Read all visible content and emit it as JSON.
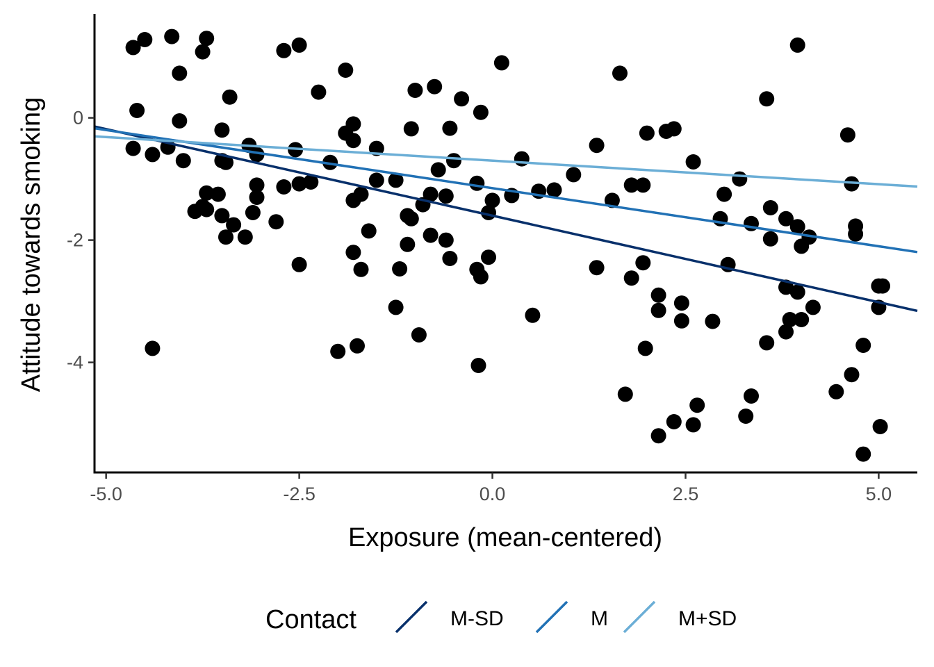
{
  "chart_data": {
    "type": "scatter",
    "title": "",
    "xlabel": "Exposure (mean-centered)",
    "ylabel": "Attitude towards smoking",
    "xlim": [
      -5.15,
      5.5
    ],
    "ylim": [
      -5.8,
      1.7
    ],
    "x_ticks": [
      -5.0,
      -2.5,
      0.0,
      2.5,
      5.0
    ],
    "x_tick_labels": [
      "-5.0",
      "-2.5",
      "0.0",
      "2.5",
      "5.0"
    ],
    "y_ticks": [
      -4,
      -2,
      0
    ],
    "y_tick_labels": [
      "-4",
      "-2",
      "0"
    ],
    "grid": false,
    "legend": {
      "title": "Contact",
      "position": "bottom"
    },
    "points": [
      [
        -4.65,
        1.15
      ],
      [
        -4.5,
        1.28
      ],
      [
        -4.15,
        1.33
      ],
      [
        -3.7,
        1.3
      ],
      [
        -3.75,
        1.08
      ],
      [
        -2.7,
        1.1
      ],
      [
        -2.5,
        1.19
      ],
      [
        -4.05,
        0.73
      ],
      [
        -1.9,
        0.78
      ],
      [
        0.12,
        0.9
      ],
      [
        3.95,
        1.19
      ],
      [
        1.65,
        0.73
      ],
      [
        -4.6,
        0.12
      ],
      [
        -4.05,
        -0.05
      ],
      [
        -3.4,
        0.34
      ],
      [
        -2.25,
        0.42
      ],
      [
        -1.0,
        0.45
      ],
      [
        -0.75,
        0.51
      ],
      [
        -0.4,
        0.31
      ],
      [
        -0.15,
        0.09
      ],
      [
        3.55,
        0.31
      ],
      [
        -4.65,
        -0.5
      ],
      [
        -4.4,
        -0.6
      ],
      [
        -4.2,
        -0.48
      ],
      [
        -4.0,
        -0.7
      ],
      [
        -3.5,
        -0.2
      ],
      [
        -3.5,
        -0.7
      ],
      [
        -3.45,
        -0.73
      ],
      [
        -3.15,
        -0.45
      ],
      [
        -3.05,
        -0.6
      ],
      [
        -2.55,
        -0.52
      ],
      [
        -2.1,
        -0.73
      ],
      [
        -1.9,
        -0.25
      ],
      [
        -1.8,
        -0.1
      ],
      [
        -1.8,
        -0.37
      ],
      [
        -1.5,
        -0.5
      ],
      [
        -1.05,
        -0.18
      ],
      [
        -0.55,
        -0.17
      ],
      [
        -0.5,
        -0.7
      ],
      [
        -0.7,
        -0.85
      ],
      [
        0.38,
        -0.67
      ],
      [
        1.35,
        -0.45
      ],
      [
        2.0,
        -0.25
      ],
      [
        2.25,
        -0.22
      ],
      [
        2.35,
        -0.18
      ],
      [
        2.6,
        -0.72
      ],
      [
        4.6,
        -0.28
      ],
      [
        -3.7,
        -1.23
      ],
      [
        -3.55,
        -1.25
      ],
      [
        -3.85,
        -1.53
      ],
      [
        -3.75,
        -1.45
      ],
      [
        -3.7,
        -1.5
      ],
      [
        -3.5,
        -1.6
      ],
      [
        -3.35,
        -1.75
      ],
      [
        -3.45,
        -1.95
      ],
      [
        -3.1,
        -1.55
      ],
      [
        -3.05,
        -1.1
      ],
      [
        -3.05,
        -1.3
      ],
      [
        -3.2,
        -1.95
      ],
      [
        -2.8,
        -1.7
      ],
      [
        -2.7,
        -1.13
      ],
      [
        -2.5,
        -1.08
      ],
      [
        -2.35,
        -1.05
      ],
      [
        -1.8,
        -1.35
      ],
      [
        -1.7,
        -1.25
      ],
      [
        -1.5,
        -1.02
      ],
      [
        -1.25,
        -1.02
      ],
      [
        -1.1,
        -1.6
      ],
      [
        -1.05,
        -1.65
      ],
      [
        -0.9,
        -1.42
      ],
      [
        -1.1,
        -2.07
      ],
      [
        -0.8,
        -1.25
      ],
      [
        -0.6,
        -1.28
      ],
      [
        -1.6,
        -1.85
      ],
      [
        -0.8,
        -1.92
      ],
      [
        -0.6,
        -2.0
      ],
      [
        -0.55,
        -2.3
      ],
      [
        -0.2,
        -1.07
      ],
      [
        -0.05,
        -1.55
      ],
      [
        0.0,
        -1.35
      ],
      [
        0.25,
        -1.27
      ],
      [
        0.6,
        -1.2
      ],
      [
        0.8,
        -1.18
      ],
      [
        1.05,
        -0.93
      ],
      [
        1.55,
        -1.35
      ],
      [
        1.8,
        -1.1
      ],
      [
        1.95,
        -1.1
      ],
      [
        3.0,
        -1.25
      ],
      [
        3.2,
        -1.0
      ],
      [
        2.95,
        -1.65
      ],
      [
        3.35,
        -1.73
      ],
      [
        3.6,
        -1.47
      ],
      [
        3.6,
        -1.98
      ],
      [
        3.8,
        -1.65
      ],
      [
        3.95,
        -1.78
      ],
      [
        4.0,
        -2.1
      ],
      [
        4.1,
        -1.95
      ],
      [
        4.65,
        -1.08
      ],
      [
        4.7,
        -1.77
      ],
      [
        4.7,
        -1.9
      ],
      [
        -1.8,
        -2.2
      ],
      [
        -1.7,
        -2.48
      ],
      [
        -2.5,
        -2.4
      ],
      [
        -1.2,
        -2.47
      ],
      [
        -0.2,
        -2.48
      ],
      [
        -0.05,
        -2.28
      ],
      [
        -0.15,
        -2.6
      ],
      [
        1.35,
        -2.45
      ],
      [
        1.8,
        -2.62
      ],
      [
        1.95,
        -2.37
      ],
      [
        3.05,
        -2.4
      ],
      [
        -1.25,
        -3.1
      ],
      [
        -0.95,
        -3.55
      ],
      [
        0.52,
        -3.23
      ],
      [
        2.15,
        -2.9
      ],
      [
        2.15,
        -3.15
      ],
      [
        2.45,
        -3.03
      ],
      [
        2.45,
        -3.32
      ],
      [
        2.85,
        -3.33
      ],
      [
        3.8,
        -2.77
      ],
      [
        3.85,
        -3.3
      ],
      [
        3.95,
        -2.85
      ],
      [
        4.0,
        -3.3
      ],
      [
        4.15,
        -3.1
      ],
      [
        5.0,
        -2.75
      ],
      [
        5.05,
        -2.75
      ],
      [
        5.0,
        -3.1
      ],
      [
        3.55,
        -3.68
      ],
      [
        3.8,
        -3.5
      ],
      [
        -4.4,
        -3.77
      ],
      [
        -2.0,
        -3.82
      ],
      [
        -1.75,
        -3.73
      ],
      [
        -0.18,
        -4.05
      ],
      [
        1.98,
        -3.77
      ],
      [
        4.8,
        -3.72
      ],
      [
        1.72,
        -4.52
      ],
      [
        2.65,
        -4.7
      ],
      [
        3.35,
        -4.55
      ],
      [
        4.45,
        -4.48
      ],
      [
        4.65,
        -4.2
      ],
      [
        2.15,
        -5.2
      ],
      [
        2.35,
        -4.97
      ],
      [
        2.6,
        -5.02
      ],
      [
        3.28,
        -4.88
      ],
      [
        5.02,
        -5.05
      ],
      [
        4.8,
        -5.5
      ]
    ],
    "series": [
      {
        "name": "M-SD",
        "color": "#08306b",
        "intercept": -1.6,
        "slope": -0.283
      },
      {
        "name": "M",
        "color": "#2171b5",
        "intercept": -1.15,
        "slope": -0.19
      },
      {
        "name": "M+SD",
        "color": "#6baed6",
        "intercept": -0.7,
        "slope": -0.077
      }
    ]
  }
}
